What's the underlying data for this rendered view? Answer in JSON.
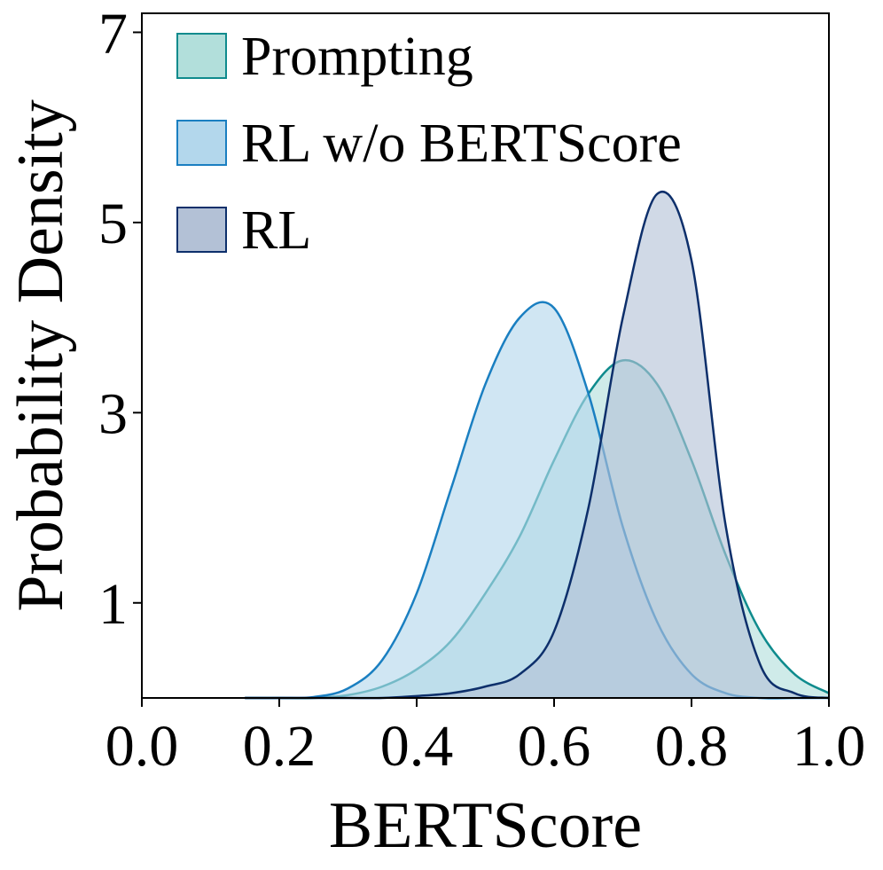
{
  "chart_data": {
    "type": "area",
    "xlabel": "BERTScore",
    "ylabel": "Probability Density",
    "xlim": [
      0.0,
      1.0
    ],
    "ylim": [
      0,
      7.2
    ],
    "xticks": [
      "0.0",
      "0.2",
      "0.4",
      "0.6",
      "0.8",
      "1.0"
    ],
    "yticks": [
      "1",
      "3",
      "5",
      "7"
    ],
    "grid": false,
    "legend_position": "top-left",
    "x": [
      0.15,
      0.2,
      0.25,
      0.3,
      0.35,
      0.4,
      0.45,
      0.5,
      0.55,
      0.6,
      0.65,
      0.7,
      0.75,
      0.8,
      0.85,
      0.9,
      0.95,
      1.0
    ],
    "series": [
      {
        "name": "Prompting",
        "fill": "#b2dfdb",
        "stroke": "#0f8b8d",
        "values": [
          0.0,
          0.0,
          0.0,
          0.03,
          0.12,
          0.3,
          0.6,
          1.1,
          1.7,
          2.5,
          3.2,
          3.55,
          3.3,
          2.5,
          1.5,
          0.7,
          0.25,
          0.05
        ]
      },
      {
        "name": "RL w/o BERTScore",
        "fill": "#b3d7ec",
        "stroke": "#1a7fc1",
        "values": [
          0.0,
          0.0,
          0.01,
          0.1,
          0.4,
          1.1,
          2.2,
          3.3,
          4.0,
          4.1,
          3.2,
          1.8,
          0.8,
          0.25,
          0.05,
          0.0,
          0.0,
          0.0
        ]
      },
      {
        "name": "RL",
        "fill": "#b3c1d6",
        "stroke": "#0d2f6b",
        "values": [
          0.0,
          0.0,
          0.0,
          0.0,
          0.0,
          0.02,
          0.05,
          0.12,
          0.25,
          0.7,
          2.0,
          4.0,
          5.3,
          4.6,
          1.8,
          0.35,
          0.05,
          0.0
        ]
      }
    ]
  }
}
